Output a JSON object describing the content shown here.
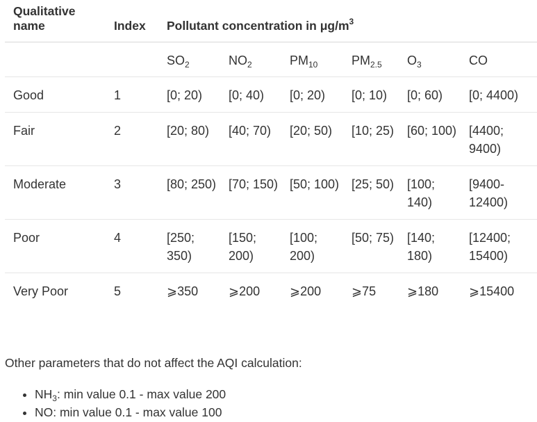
{
  "header": {
    "col_name": "Qualitative name",
    "col_index": "Index",
    "col_concentration_prefix": "Pollutant concentration in μg/m",
    "col_concentration_sup": "3"
  },
  "pollutants": [
    {
      "base": "SO",
      "sub": "2"
    },
    {
      "base": "NO",
      "sub": "2"
    },
    {
      "base": "PM",
      "sub": "10"
    },
    {
      "base": "PM",
      "sub": "2.5"
    },
    {
      "base": "O",
      "sub": "3"
    },
    {
      "base": "CO",
      "sub": ""
    }
  ],
  "rows": [
    {
      "name": "Good",
      "index": "1",
      "values": [
        "[0; 20)",
        "[0; 40)",
        "[0; 20)",
        "[0; 10)",
        "[0; 60)",
        "[0; 4400)"
      ]
    },
    {
      "name": "Fair",
      "index": "2",
      "values": [
        "[20; 80)",
        "[40; 70)",
        "[20; 50)",
        "[10; 25)",
        "[60; 100)",
        "[4400; 9400)"
      ]
    },
    {
      "name": "Moderate",
      "index": "3",
      "values": [
        "[80; 250)",
        "[70; 150)",
        "[50; 100)",
        "[25; 50)",
        "[100; 140)",
        "[9400- 12400)"
      ]
    },
    {
      "name": "Poor",
      "index": "4",
      "values": [
        "[250; 350)",
        "[150; 200)",
        "[100; 200)",
        "[50; 75)",
        "[140; 180)",
        "[12400; 15400)"
      ]
    },
    {
      "name": "Very Poor",
      "index": "5",
      "values": [
        "⩾350",
        "⩾200",
        "⩾200",
        "⩾75",
        "⩾180",
        "⩾15400"
      ]
    }
  ],
  "note": "Other parameters that do not affect the AQI calculation:",
  "params": [
    {
      "base": "NH",
      "sub": "3",
      "text": ": min value 0.1 - max value 200"
    },
    {
      "base": "NO",
      "sub": "",
      "text": ": min value 0.1 - max value 100"
    }
  ]
}
